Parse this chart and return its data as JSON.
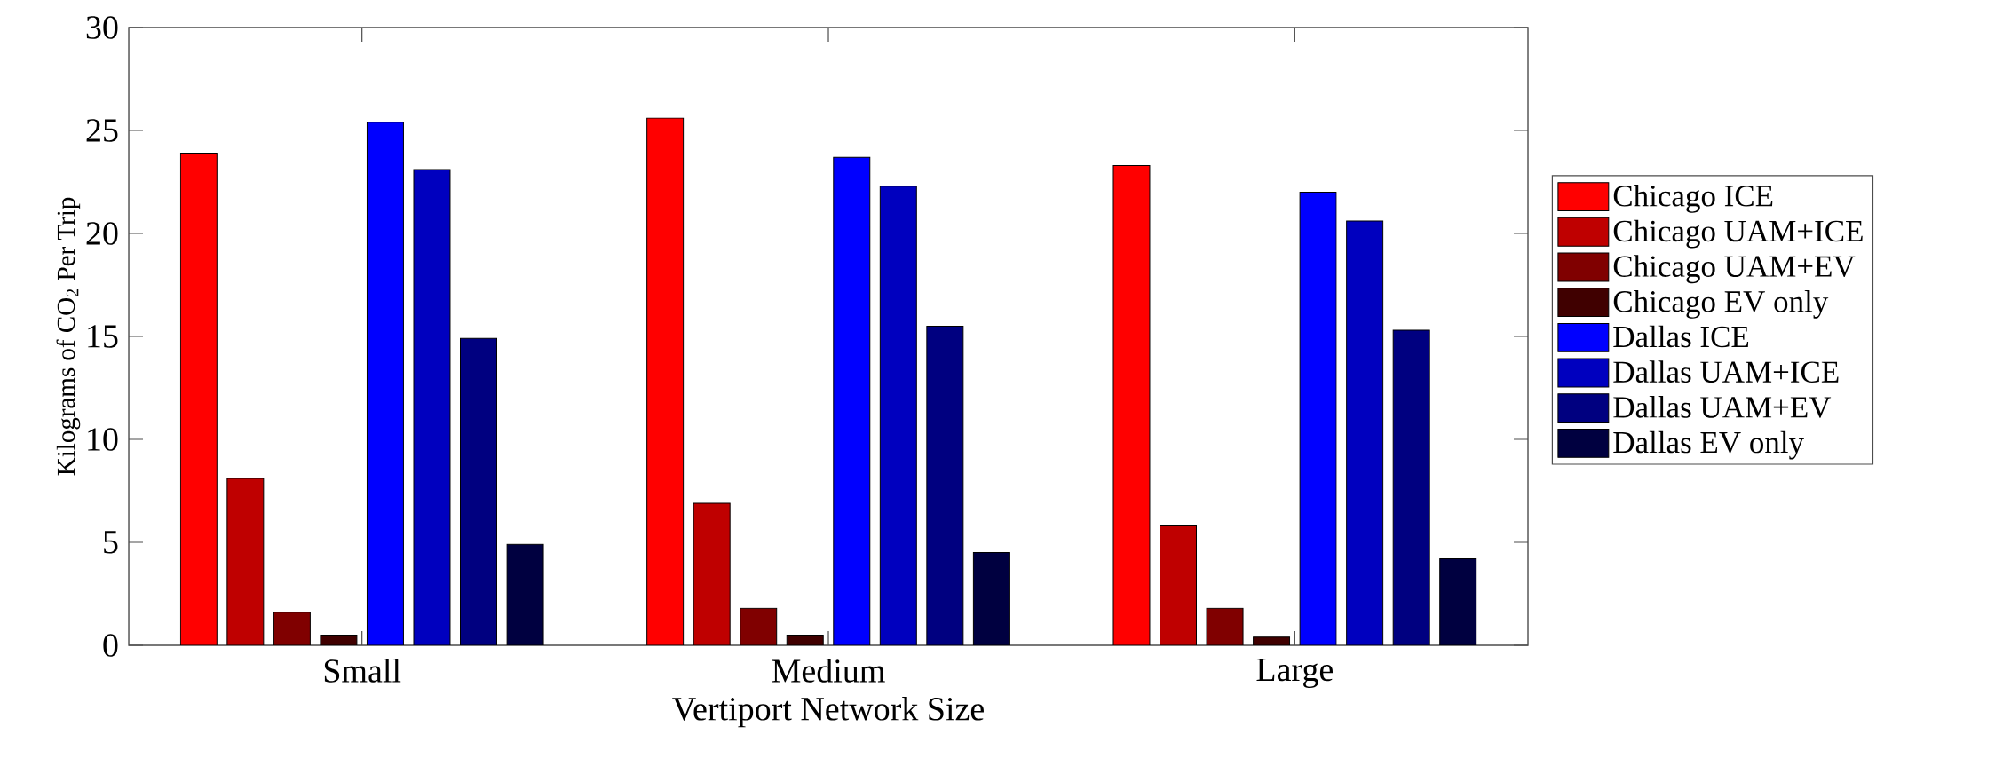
{
  "chart_data": {
    "type": "bar",
    "xlabel": "Vertiport Network Size",
    "ylabel": "Kilograms of CO$_{2}$ Per Trip",
    "categories": [
      "Small",
      "Medium",
      "Large"
    ],
    "ylim": [
      0,
      30
    ],
    "yticks": [
      0,
      5,
      10,
      15,
      20,
      25,
      30
    ],
    "legend": "right",
    "series": [
      {
        "name": "Chicago ICE",
        "color": "#ff0000",
        "values": [
          23.9,
          25.6,
          23.3
        ]
      },
      {
        "name": "Chicago UAM+ICE",
        "color": "#bf0000",
        "values": [
          8.1,
          6.9,
          5.8
        ]
      },
      {
        "name": "Chicago UAM+EV",
        "color": "#800000",
        "values": [
          1.6,
          1.8,
          1.8
        ]
      },
      {
        "name": "Chicago EV only",
        "color": "#400000",
        "values": [
          0.5,
          0.5,
          0.4
        ]
      },
      {
        "name": "Dallas ICE",
        "color": "#0000ff",
        "values": [
          25.4,
          23.7,
          22.0
        ]
      },
      {
        "name": "Dallas UAM+ICE",
        "color": "#0000bf",
        "values": [
          23.1,
          22.3,
          20.6
        ]
      },
      {
        "name": "Dallas UAM+EV",
        "color": "#000080",
        "values": [
          14.9,
          15.5,
          15.3
        ]
      },
      {
        "name": "Dallas EV only",
        "color": "#000040",
        "values": [
          4.9,
          4.5,
          4.2
        ]
      }
    ]
  }
}
